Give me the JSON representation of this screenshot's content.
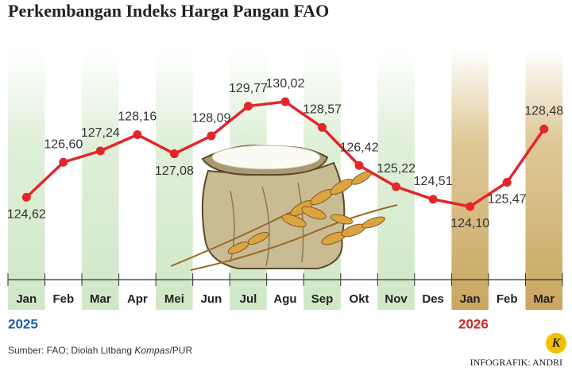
{
  "chart_data": {
    "type": "line",
    "title": "Perkembangan Indeks Harga Pangan FAO",
    "categories": [
      "Jan",
      "Feb",
      "Mar",
      "Apr",
      "Mei",
      "Jun",
      "Jul",
      "Agu",
      "Sep",
      "Okt",
      "Nov",
      "Des",
      "Jan",
      "Feb",
      "Mar"
    ],
    "values": [
      124.62,
      126.6,
      127.24,
      128.16,
      127.08,
      128.09,
      129.77,
      130.02,
      128.57,
      126.42,
      125.22,
      124.51,
      124.1,
      125.47,
      128.48
    ],
    "value_labels": [
      "124,62",
      "126,60",
      "127,24",
      "128,16",
      "127,08",
      "128,09",
      "129,77",
      "130,02",
      "128,57",
      "126,42",
      "125,22",
      "124,51",
      "124,10",
      "125,47",
      "128,48"
    ],
    "color": "#e3262b",
    "year_labels": [
      "2025",
      "2026"
    ],
    "source": [
      "Sumber: FAO; Diolah Litbang ",
      "Kompas",
      "/PUR"
    ],
    "credit": "INFOGRAFIK: ANDRI",
    "logo": "K"
  }
}
